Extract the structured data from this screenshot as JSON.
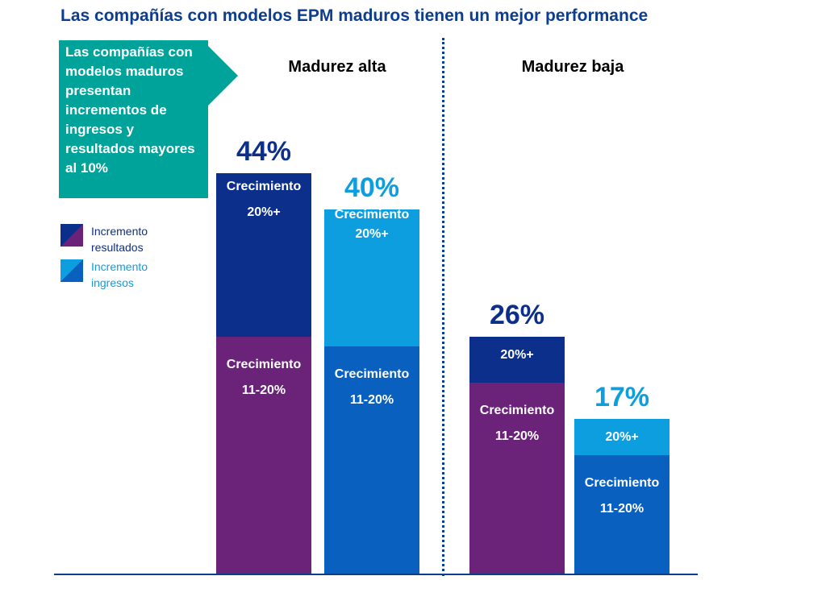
{
  "title": "Las compañías con modelos EPM maduros tienen un mejor performance",
  "callout": {
    "text": "Las compañías con modelos maduros presentan incrementos de ingresos y resultados mayores al 10%"
  },
  "legend": [
    {
      "label": "Incremento resultados",
      "color": "#0b2f8a"
    },
    {
      "label": "Incremento ingresos",
      "color": "#0d9ee0"
    }
  ],
  "colors": {
    "results_top": "#0b2f8a",
    "results_bottom": "#6a2378",
    "income_top": "#0d9ee0",
    "income_bottom": "#0a60bf"
  },
  "chart_data": {
    "type": "bar",
    "stacked": true,
    "groups": [
      {
        "label": "Madurez alta",
        "bars": [
          {
            "series": "Incremento resultados",
            "total": 44,
            "total_label": "44%",
            "segments": [
              {
                "name": "Crecimiento 11-20%",
                "value": 26,
                "label_lines": [
                  "Crecimiento",
                  "11-20%"
                ]
              },
              {
                "name": "Crecimiento 20%+",
                "value": 18,
                "label_lines": [
                  "Crecimiento",
                  "20%+"
                ]
              }
            ]
          },
          {
            "series": "Incremento ingresos",
            "total": 40,
            "total_label": "40%",
            "segments": [
              {
                "name": "Crecimiento 11-20%",
                "value": 25,
                "label_lines": [
                  "Crecimiento",
                  "11-20%"
                ]
              },
              {
                "name": "Crecimiento 20%+",
                "value": 15,
                "label_lines": [
                  "Crecimiento",
                  "20%+"
                ]
              }
            ]
          }
        ]
      },
      {
        "label": "Madurez baja",
        "bars": [
          {
            "series": "Incremento resultados",
            "total": 26,
            "total_label": "26%",
            "segments": [
              {
                "name": "Crecimiento 11-20%",
                "value": 21,
                "label_lines": [
                  "Crecimiento",
                  "11-20%"
                ]
              },
              {
                "name": "20%+",
                "value": 5,
                "label_lines": [
                  "20%+"
                ]
              }
            ]
          },
          {
            "series": "Incremento ingresos",
            "total": 17,
            "total_label": "17%",
            "segments": [
              {
                "name": "Crecimiento 11-20%",
                "value": 13,
                "label_lines": [
                  "Crecimiento",
                  "11-20%"
                ]
              },
              {
                "name": "20%+",
                "value": 4,
                "label_lines": [
                  "20%+"
                ]
              }
            ]
          }
        ]
      }
    ],
    "grid": false,
    "legend_position": "left"
  }
}
